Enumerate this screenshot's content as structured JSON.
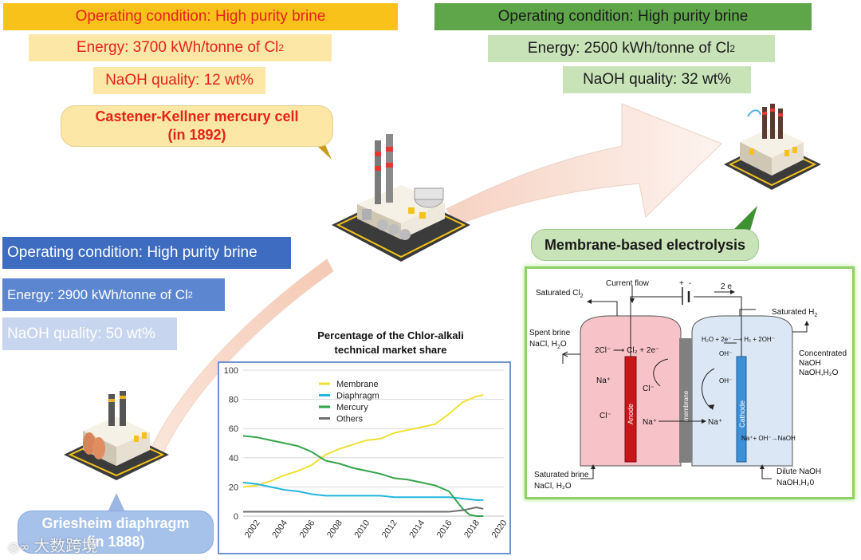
{
  "mercury": {
    "condition": "Operating condition: High purity brine",
    "energy_prefix": "Energy: 3700 kWh/tonne of Cl",
    "energy_sub": "2",
    "naoh": "NaOH quality: 12 wt%",
    "name_line1": "Castener-Kellner mercury cell",
    "name_line2": "(in 1892)"
  },
  "membrane": {
    "condition": "Operating condition: High purity brine",
    "energy_prefix": "Energy: 2500 kWh/tonne of Cl",
    "energy_sub": "2",
    "naoh": "NaOH quality: 32 wt%",
    "name": "Membrane-based electrolysis"
  },
  "diaphragm": {
    "condition": "Operating condition: High purity brine",
    "energy_prefix": "Energy: 2900 kWh/tonne of Cl",
    "energy_sub": "2",
    "naoh": "NaOH quality: 50 wt%",
    "name_line1": "Griesheim diaphragm",
    "name_line2": "(in 1888)"
  },
  "watermark": "大数跨境",
  "colors": {
    "mercury_condition_bg": "#f9c21b",
    "mercury_text": "#e5231b",
    "mercury_light_bg": "#fde7a6",
    "membrane_condition_bg": "#5fa64a",
    "membrane_light_bg": "#c9e3b9",
    "diaphragm_condition_bg": "#3d6cc0",
    "diaphragm_light_bg": "#c7d5ee",
    "chart_border": "#6f93d0",
    "cell_panel_border": "#8fd067"
  },
  "chart_data": {
    "type": "line",
    "title": "Percentage of the Chlor-alkali technical market share",
    "title_line1": "Percentage of the Chlor-alkali",
    "title_line2": "technical market share",
    "xlabel": "",
    "ylabel": "",
    "xlim": [
      2001,
      2020
    ],
    "ylim": [
      0,
      100
    ],
    "xticks": [
      2002,
      2004,
      2006,
      2008,
      2010,
      2012,
      2014,
      2016,
      2018,
      2020
    ],
    "yticks": [
      0,
      20,
      40,
      60,
      80,
      100
    ],
    "grid": true,
    "legend": "top-center",
    "series": [
      {
        "name": "Membrane",
        "color": "#f0e034",
        "x": [
          2001,
          2002,
          2003,
          2004,
          2005,
          2006,
          2007,
          2008,
          2009,
          2010,
          2011,
          2012,
          2013,
          2014,
          2015,
          2016,
          2017,
          2018,
          2018.5
        ],
        "values": [
          20,
          21,
          24,
          28,
          31,
          35,
          42,
          46,
          49,
          52,
          53,
          57,
          59,
          61,
          63,
          70,
          78,
          82,
          83
        ]
      },
      {
        "name": "Diaphragm",
        "color": "#22b5de",
        "x": [
          2001,
          2002,
          2003,
          2004,
          2005,
          2006,
          2007,
          2008,
          2009,
          2010,
          2011,
          2012,
          2013,
          2014,
          2015,
          2016,
          2017,
          2018,
          2018.5
        ],
        "values": [
          23,
          22,
          20,
          18,
          17,
          15,
          14,
          14,
          14,
          14,
          14,
          13,
          13,
          13,
          13,
          13,
          12,
          11,
          11
        ]
      },
      {
        "name": "Mercury",
        "color": "#34a34a",
        "x": [
          2001,
          2002,
          2003,
          2004,
          2005,
          2006,
          2007,
          2008,
          2009,
          2010,
          2011,
          2012,
          2013,
          2014,
          2015,
          2016,
          2017,
          2017.5,
          2018,
          2018.5
        ],
        "values": [
          55,
          54,
          52,
          50,
          48,
          44,
          38,
          36,
          33,
          31,
          29,
          26,
          25,
          23,
          21,
          17,
          5,
          1,
          0,
          0
        ]
      },
      {
        "name": "Others",
        "color": "#6f6f6f",
        "x": [
          2001,
          2004,
          2008,
          2012,
          2016,
          2017,
          2018,
          2018.5
        ],
        "values": [
          3,
          3,
          3,
          3,
          3,
          4,
          6,
          5
        ]
      }
    ]
  },
  "cell": {
    "current_flow": "Current flow",
    "plus": "+",
    "minus": "-",
    "electrons": "2 e",
    "sat_cl2_prefix": "Saturated Cl",
    "sat_cl2_sub": "2",
    "sat_h2_prefix": "Saturated H",
    "sat_h2_sub": "2",
    "spent_brine_line1": "Spent brine",
    "spent_brine_line2_prefix": "NaCl, H",
    "spent_brine_line2_sub": "2",
    "spent_brine_line2_suffix": "O",
    "anode_reaction": "2Cl⁻ ⟶ Cl₂ + 2e⁻",
    "cathode_reaction": "H₂O + 2e⁻ ⟶ H₂ + 2OH⁻",
    "na_anode": "Na⁺",
    "cl_anode": "Cl⁻",
    "cl_mid": "Cl⁻",
    "na_move": "Na⁺",
    "na_cathode": "Na⁺",
    "oh_top": "OH⁻",
    "oh_mid": "OH⁻",
    "anode_label": "Anode",
    "membrane_label": "membrane",
    "cathode_label": "Cathode",
    "combine": "Na⁺+ OH⁻→NaOH",
    "concentrated_line1": "Concentrated",
    "concentrated_line2": "NaOH",
    "concentrated_line3": "NaOH,H₂O",
    "sat_brine_line1": "Saturated brine",
    "sat_brine_line2": "NaCl, H₂O",
    "dilute_line1": "Dilute NaOH",
    "dilute_line2": "NaOH,H₂0"
  }
}
